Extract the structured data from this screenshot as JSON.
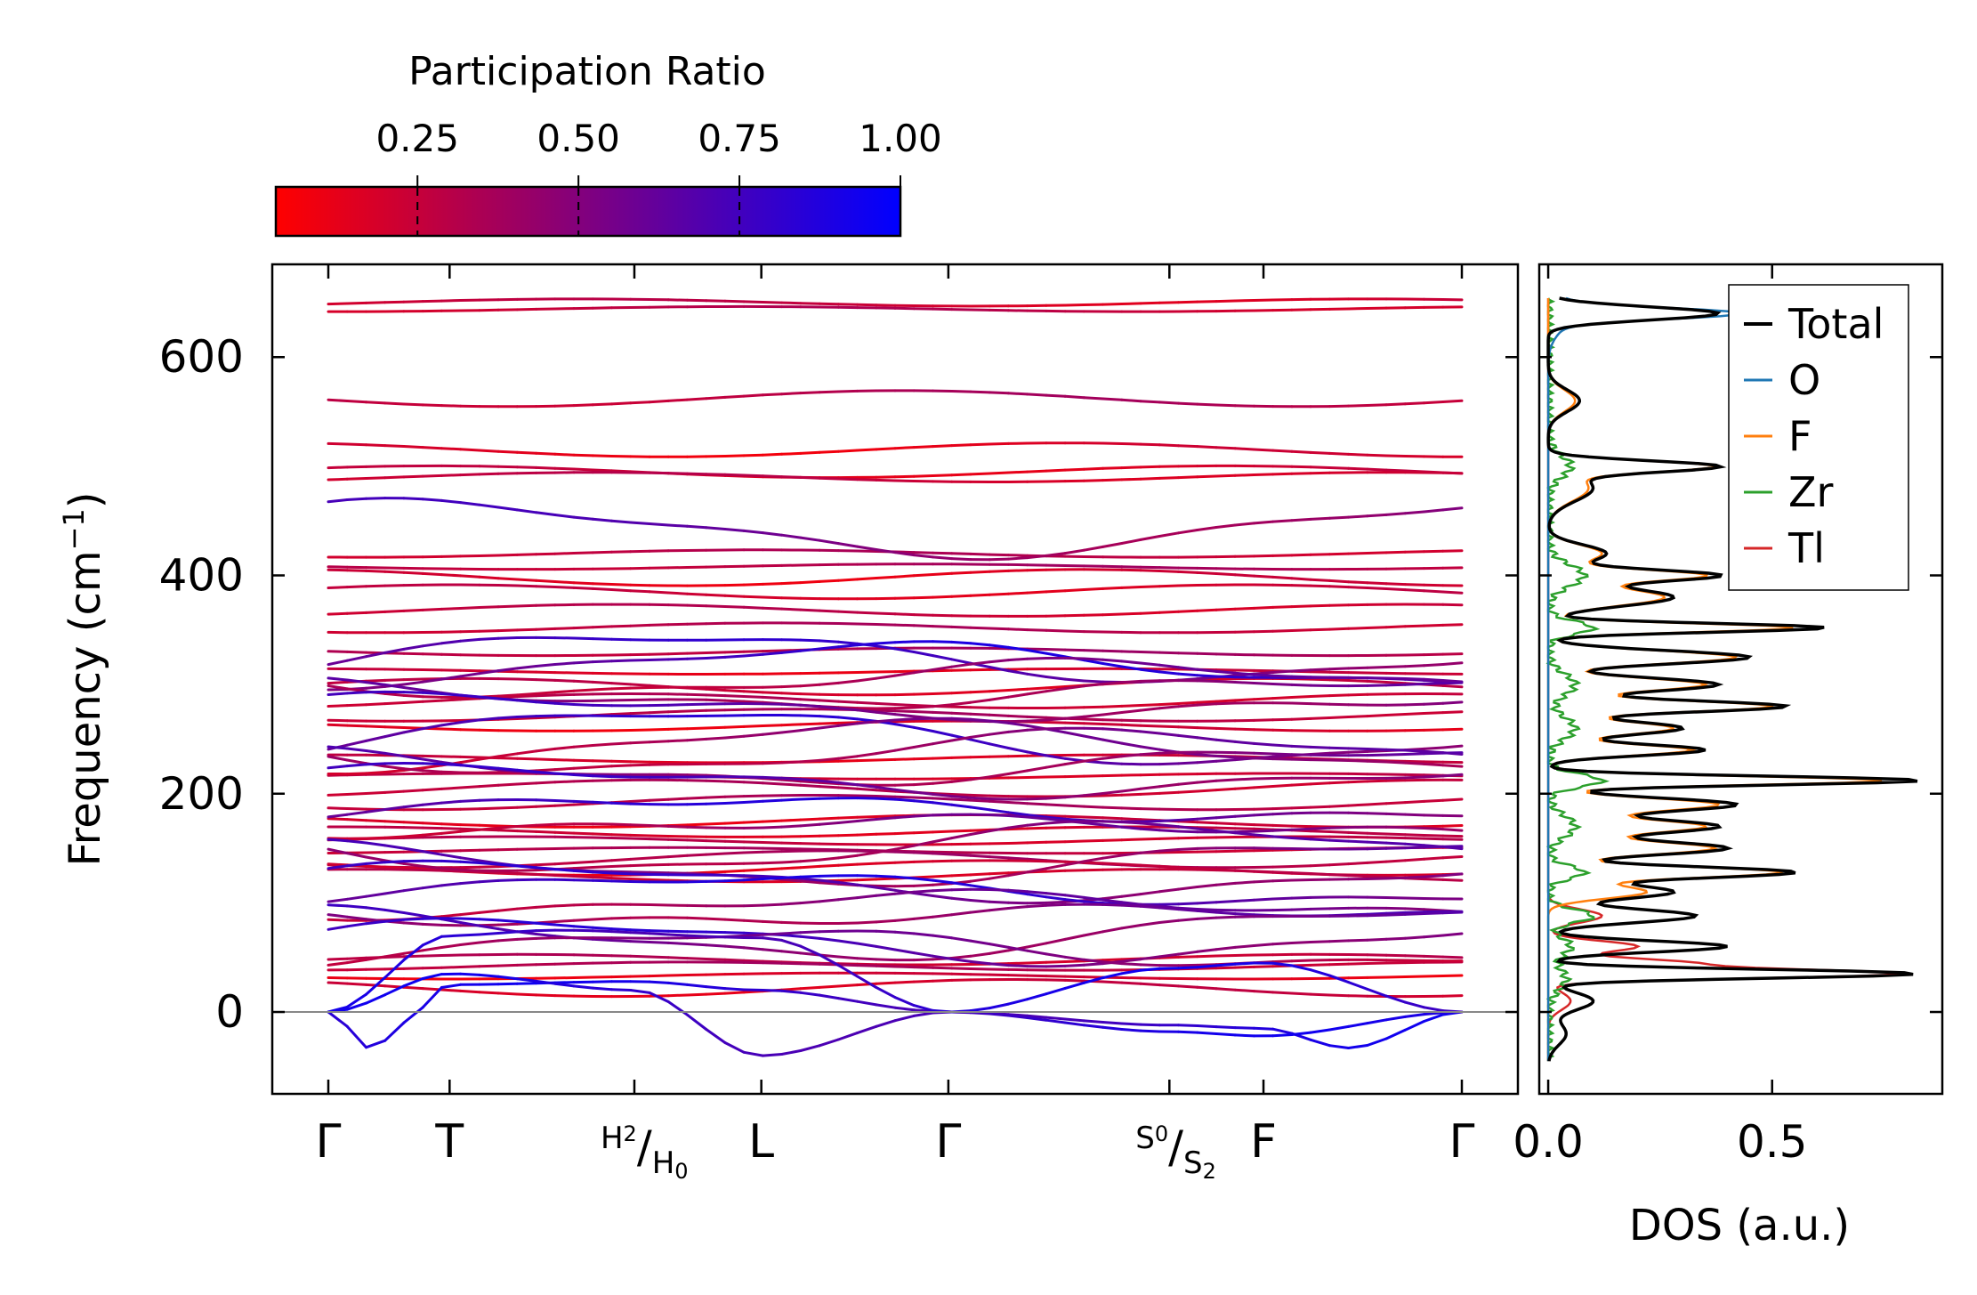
{
  "chart_data": [
    {
      "type": "line",
      "subtype": "phonon-band-structure",
      "title": "",
      "xlabel": "",
      "ylabel_main": "Frequency (cm",
      "ylabel_exp": "−1",
      "ylabel_close": ")",
      "ylim": [
        -75,
        685
      ],
      "yticks": [
        0,
        200,
        400,
        600
      ],
      "ytick_labels": [
        "0",
        "200",
        "400",
        "600"
      ],
      "kpath": [
        {
          "label": "Γ",
          "pos": 0.0
        },
        {
          "label": "T",
          "pos": 0.107
        },
        {
          "label": "H",
          "pos": 0.27,
          "sub_a": "2",
          "label_b": "H",
          "sub_b": "0",
          "discontinuity": true
        },
        {
          "label": "L",
          "pos": 0.382
        },
        {
          "label": "Γ",
          "pos": 0.547
        },
        {
          "label": "S",
          "pos": 0.742,
          "sub_a": "0",
          "label_b": "S",
          "sub_b": "2",
          "discontinuity": true
        },
        {
          "label": "F",
          "pos": 0.825
        },
        {
          "label": "Γ",
          "pos": 1.0
        }
      ],
      "zero_line": 0,
      "flat_branches_red": [
        650,
        644,
        562,
        515,
        495,
        490,
        420,
        408,
        398,
        385,
        368,
        352,
        330,
        312,
        298,
        285,
        272,
        262,
        232,
        216,
        205,
        192,
        175,
        165,
        157,
        148,
        140,
        132,
        125,
        48,
        42,
        33,
        22
      ],
      "mixed_branches": [
        443,
        325,
        318,
        305,
        292,
        280,
        252,
        244,
        238,
        225,
        212,
        186,
        170,
        150,
        136,
        120,
        112,
        98,
        88,
        72,
        65,
        58
      ],
      "acoustic_branches": [
        {
          "name": "acoustic-1",
          "points": [
            [
              0,
              0
            ],
            [
              0.04,
              -35
            ],
            [
              0.065,
              -10
            ],
            [
              0.107,
              25
            ],
            [
              0.27,
              28
            ],
            [
              0.382,
              20
            ],
            [
              0.547,
              0
            ],
            [
              0.742,
              -12
            ],
            [
              0.825,
              -15
            ],
            [
              0.9,
              -33
            ],
            [
              1.0,
              0
            ]
          ]
        },
        {
          "name": "acoustic-2",
          "points": [
            [
              0,
              0
            ],
            [
              0.107,
              35
            ],
            [
              0.27,
              20
            ],
            [
              0.382,
              -40
            ],
            [
              0.547,
              0
            ],
            [
              0.742,
              -18
            ],
            [
              0.825,
              -22
            ],
            [
              1.0,
              0
            ]
          ]
        },
        {
          "name": "acoustic-3",
          "points": [
            [
              0,
              0
            ],
            [
              0.107,
              70
            ],
            [
              0.2,
              75
            ],
            [
              0.382,
              68
            ],
            [
              0.547,
              0
            ],
            [
              0.742,
              40
            ],
            [
              0.825,
              45
            ],
            [
              1.0,
              0
            ]
          ]
        }
      ],
      "colorbar": {
        "title": "Participation Ratio",
        "ticks": [
          "0.25",
          "0.50",
          "0.75",
          "1.00"
        ],
        "tick_values": [
          0.25,
          0.5,
          0.75,
          1.0
        ],
        "range": [
          0.03,
          1.0
        ],
        "color_low": "#ff0000",
        "color_high": "#0000ff"
      }
    },
    {
      "type": "line",
      "subtype": "density-of-states",
      "orientation": "horizontal",
      "xlabel": "DOS (a.u.)",
      "xlim": [
        -0.02,
        0.88
      ],
      "xticks": [
        0.0,
        0.5
      ],
      "xtick_labels": [
        "0.0",
        "0.5"
      ],
      "ylim": [
        -75,
        685
      ],
      "series": [
        {
          "name": "Total",
          "color": "#000000",
          "peaks": [
            [
              640,
              0.38,
              6
            ],
            [
              560,
              0.07,
              10
            ],
            [
              500,
              0.36,
              5
            ],
            [
              480,
              0.1,
              12
            ],
            [
              420,
              0.13,
              8
            ],
            [
              400,
              0.37,
              5
            ],
            [
              380,
              0.28,
              8
            ],
            [
              352,
              0.62,
              4
            ],
            [
              325,
              0.45,
              6
            ],
            [
              300,
              0.38,
              6
            ],
            [
              280,
              0.53,
              5
            ],
            [
              260,
              0.3,
              6
            ],
            [
              240,
              0.35,
              5
            ],
            [
              212,
              0.83,
              4
            ],
            [
              190,
              0.42,
              6
            ],
            [
              170,
              0.38,
              6
            ],
            [
              150,
              0.4,
              6
            ],
            [
              128,
              0.55,
              5
            ],
            [
              110,
              0.28,
              6
            ],
            [
              88,
              0.33,
              6
            ],
            [
              60,
              0.4,
              5
            ],
            [
              35,
              0.82,
              4
            ],
            [
              10,
              0.1,
              8
            ],
            [
              -20,
              0.04,
              10
            ]
          ]
        },
        {
          "name": "O",
          "color": "#1f77b4",
          "peaks": [
            [
              640,
              0.38,
              5
            ],
            [
              640,
              0.05,
              15
            ]
          ]
        },
        {
          "name": "F",
          "color": "#ff7f0e",
          "peaks": [
            [
              560,
              0.06,
              10
            ],
            [
              500,
              0.35,
              5
            ],
            [
              480,
              0.09,
              12
            ],
            [
              420,
              0.12,
              8
            ],
            [
              400,
              0.34,
              5
            ],
            [
              380,
              0.26,
              8
            ],
            [
              352,
              0.55,
              4
            ],
            [
              325,
              0.42,
              6
            ],
            [
              300,
              0.35,
              6
            ],
            [
              280,
              0.5,
              5
            ],
            [
              260,
              0.28,
              6
            ],
            [
              240,
              0.32,
              5
            ],
            [
              212,
              0.75,
              4
            ],
            [
              190,
              0.38,
              6
            ],
            [
              170,
              0.35,
              6
            ],
            [
              150,
              0.37,
              6
            ],
            [
              128,
              0.52,
              5
            ],
            [
              110,
              0.22,
              6
            ]
          ]
        },
        {
          "name": "Zr",
          "color": "#2ca02c",
          "peaks": [
            [
              500,
              0.05,
              10
            ],
            [
              400,
              0.08,
              10
            ],
            [
              352,
              0.1,
              6
            ],
            [
              300,
              0.06,
              10
            ],
            [
              260,
              0.06,
              10
            ],
            [
              212,
              0.12,
              6
            ],
            [
              170,
              0.06,
              10
            ],
            [
              128,
              0.08,
              6
            ],
            [
              88,
              0.1,
              6
            ],
            [
              60,
              0.05,
              8
            ],
            [
              30,
              0.04,
              10
            ]
          ]
        },
        {
          "name": "Tl",
          "color": "#d62728",
          "peaks": [
            [
              88,
              0.12,
              6
            ],
            [
              60,
              0.2,
              5
            ],
            [
              35,
              0.78,
              4
            ],
            [
              45,
              0.3,
              4
            ],
            [
              10,
              0.05,
              8
            ]
          ]
        }
      ],
      "legend": [
        "Total",
        "O",
        "F",
        "Zr",
        "Tl"
      ],
      "legend_position": "top-right"
    }
  ]
}
